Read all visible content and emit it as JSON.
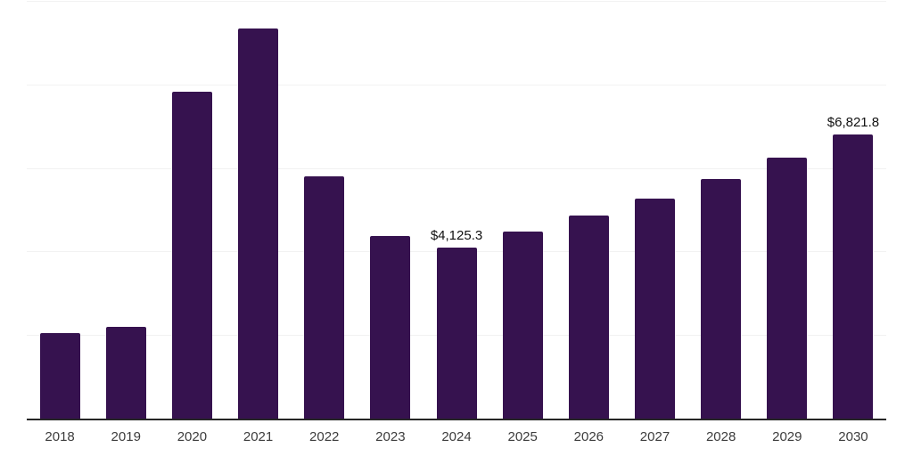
{
  "chart": {
    "background_color": "#ffffff",
    "bar_color": "#36124F",
    "grid_color": "#f2f2f2",
    "axis_line_color": "#262626",
    "value_label_color": "#111111",
    "tick_label_color": "#3c3c3c"
  },
  "chart_data": {
    "type": "bar",
    "title": "",
    "xlabel": "",
    "ylabel": "",
    "categories": [
      "2018",
      "2019",
      "2020",
      "2021",
      "2022",
      "2023",
      "2024",
      "2025",
      "2026",
      "2027",
      "2028",
      "2029",
      "2030"
    ],
    "values": [
      2070,
      2220,
      7850,
      9360,
      5820,
      4400,
      4125.3,
      4500,
      4880,
      5290,
      5760,
      6270,
      6821.8
    ],
    "value_labels": [
      "",
      "",
      "",
      "",
      "",
      "",
      "$4,125.3",
      "",
      "",
      "",
      "",
      "",
      "$6,821.8"
    ],
    "ylim": [
      0,
      10000
    ],
    "grid_values": [
      2000,
      4000,
      6000,
      8000,
      10000
    ],
    "grid": "horizontal",
    "legend_position": "none"
  }
}
